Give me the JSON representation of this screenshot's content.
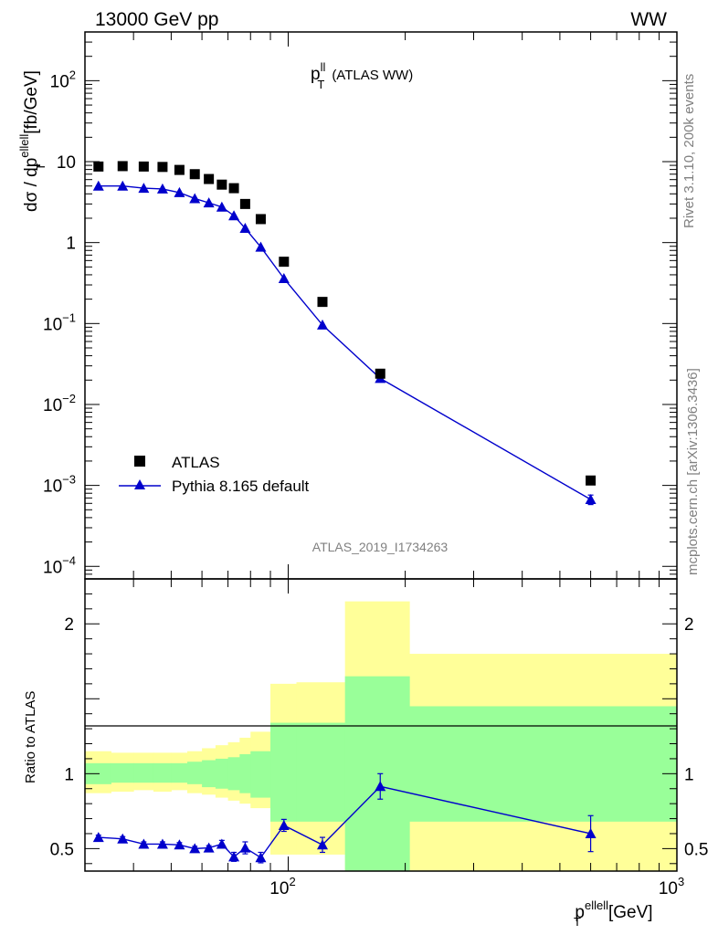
{
  "header": {
    "left": "13000 GeV pp",
    "right": "WW",
    "side_top": "Rivet 3.1.10,  200k events",
    "side_bottom": "mcplots.cern.ch [arXiv:1306.3436]",
    "analysis": "ATLAS_2019_I1734263"
  },
  "colors": {
    "data": "#000000",
    "mc": "#0000cc",
    "band_yellow": "#ffff99",
    "band_green": "#99ff99"
  },
  "chart_data": [
    {
      "type": "scatter",
      "title_main": "p",
      "title_sup": "ll",
      "title_sub": "T",
      "title_rest": "(ATLAS WW)",
      "ylabel": "dσ / dp",
      "ylabel_sup": "elle",
      "ylabel_sup2": "ll",
      "ylabel_sub": "T",
      "ylabel_unit": "[fb/GeV]",
      "xscale": "log",
      "yscale": "log",
      "xlim": [
        30,
        1000
      ],
      "ylim": [
        7e-05,
        400
      ],
      "y_ticks": [
        {
          "value": 0.0001,
          "base": "10",
          "exp": "−4"
        },
        {
          "value": 0.001,
          "base": "10",
          "exp": "−3"
        },
        {
          "value": 0.01,
          "base": "10",
          "exp": "−2"
        },
        {
          "value": 0.1,
          "base": "10",
          "exp": "−1"
        },
        {
          "value": 1,
          "base": "1",
          "exp": ""
        },
        {
          "value": 10,
          "base": "10",
          "exp": ""
        },
        {
          "value": 100,
          "base": "10",
          "exp": "2"
        }
      ],
      "legend": [
        "ATLAS",
        "Pythia 8.165 default"
      ],
      "series": [
        {
          "name": "ATLAS",
          "marker": "square",
          "x": [
            32.5,
            37.5,
            42.5,
            47.5,
            52.5,
            57.5,
            62.5,
            67.5,
            72.5,
            77.5,
            85,
            97.5,
            122.5,
            172.5,
            600
          ],
          "y": [
            8.7,
            8.8,
            8.7,
            8.6,
            7.9,
            7.0,
            6.1,
            5.2,
            4.7,
            3.0,
            1.95,
            0.58,
            0.185,
            0.024,
            0.00115
          ]
        },
        {
          "name": "Pythia 8.165 default",
          "marker": "triangle",
          "x": [
            32.5,
            37.5,
            42.5,
            47.5,
            52.5,
            57.5,
            62.5,
            67.5,
            72.5,
            77.5,
            85,
            97.5,
            122.5,
            172.5,
            600
          ],
          "y": [
            5.0,
            5.0,
            4.7,
            4.6,
            4.15,
            3.5,
            3.1,
            2.75,
            2.15,
            1.5,
            0.88,
            0.36,
            0.096,
            0.021,
            0.00067
          ],
          "yerr_lo": [
            0,
            0,
            0,
            0,
            0,
            0,
            0,
            0,
            0,
            0,
            0,
            0,
            0,
            0.001,
            9e-05
          ],
          "yerr_hi": [
            0,
            0,
            0,
            0,
            0,
            0,
            0,
            0,
            0,
            0,
            0,
            0,
            0,
            0.001,
            9e-05
          ]
        }
      ]
    },
    {
      "type": "line",
      "ylabel": "Ratio to ATLAS",
      "xlabel_main": "p",
      "xlabel_sup": "elle",
      "xlabel_sup2": "ll",
      "xlabel_sub": "T",
      "xlabel_unit": "[GeV]",
      "xscale": "log",
      "xlim": [
        30,
        1000
      ],
      "ylim": [
        0.35,
        2.3
      ],
      "y_ticks": [
        0.5,
        1,
        2
      ],
      "y_tick_labels": [
        "0.5",
        "1",
        "2"
      ],
      "x_ticks": [
        {
          "value": 100,
          "base": "10",
          "exp": "2"
        },
        {
          "value": 1000,
          "base": "10",
          "exp": "3"
        }
      ],
      "bins": [
        30,
        35,
        40,
        45,
        50,
        55,
        60,
        65,
        70,
        75,
        80,
        90,
        105,
        140,
        205,
        1000
      ],
      "band_yellow": [
        {
          "lo": 0.87,
          "hi": 1.15
        },
        {
          "lo": 0.88,
          "hi": 1.14
        },
        {
          "lo": 0.89,
          "hi": 1.14
        },
        {
          "lo": 0.88,
          "hi": 1.14
        },
        {
          "lo": 0.89,
          "hi": 1.14
        },
        {
          "lo": 0.87,
          "hi": 1.15
        },
        {
          "lo": 0.86,
          "hi": 1.17
        },
        {
          "lo": 0.84,
          "hi": 1.19
        },
        {
          "lo": 0.82,
          "hi": 1.21
        },
        {
          "lo": 0.8,
          "hi": 1.24
        },
        {
          "lo": 0.77,
          "hi": 1.28
        },
        {
          "lo": 0.46,
          "hi": 1.6
        },
        {
          "lo": 0.46,
          "hi": 1.61
        },
        {
          "lo": 0.35,
          "hi": 2.15
        },
        {
          "lo": 0.35,
          "hi": 1.8
        }
      ],
      "band_green": [
        {
          "lo": 0.93,
          "hi": 1.07
        },
        {
          "lo": 0.94,
          "hi": 1.07
        },
        {
          "lo": 0.94,
          "hi": 1.07
        },
        {
          "lo": 0.94,
          "hi": 1.07
        },
        {
          "lo": 0.94,
          "hi": 1.07
        },
        {
          "lo": 0.93,
          "hi": 1.08
        },
        {
          "lo": 0.91,
          "hi": 1.09
        },
        {
          "lo": 0.9,
          "hi": 1.1
        },
        {
          "lo": 0.89,
          "hi": 1.11
        },
        {
          "lo": 0.87,
          "hi": 1.13
        },
        {
          "lo": 0.84,
          "hi": 1.15
        },
        {
          "lo": 0.68,
          "hi": 1.34
        },
        {
          "lo": 0.68,
          "hi": 1.34
        },
        {
          "lo": 0.35,
          "hi": 1.65
        },
        {
          "lo": 0.68,
          "hi": 1.45
        }
      ],
      "series": [
        {
          "name": "Pythia 8.165 default / ATLAS",
          "x": [
            32.5,
            37.5,
            42.5,
            47.5,
            52.5,
            57.5,
            62.5,
            67.5,
            72.5,
            77.5,
            85,
            97.5,
            122.5,
            172.5,
            600
          ],
          "y": [
            0.575,
            0.565,
            0.53,
            0.53,
            0.525,
            0.5,
            0.505,
            0.53,
            0.445,
            0.505,
            0.44,
            0.655,
            0.525,
            0.915,
            0.6
          ],
          "yerr": [
            0.015,
            0.015,
            0.015,
            0.015,
            0.015,
            0.015,
            0.015,
            0.025,
            0.03,
            0.04,
            0.035,
            0.04,
            0.05,
            0.085,
            0.12
          ]
        }
      ]
    }
  ]
}
